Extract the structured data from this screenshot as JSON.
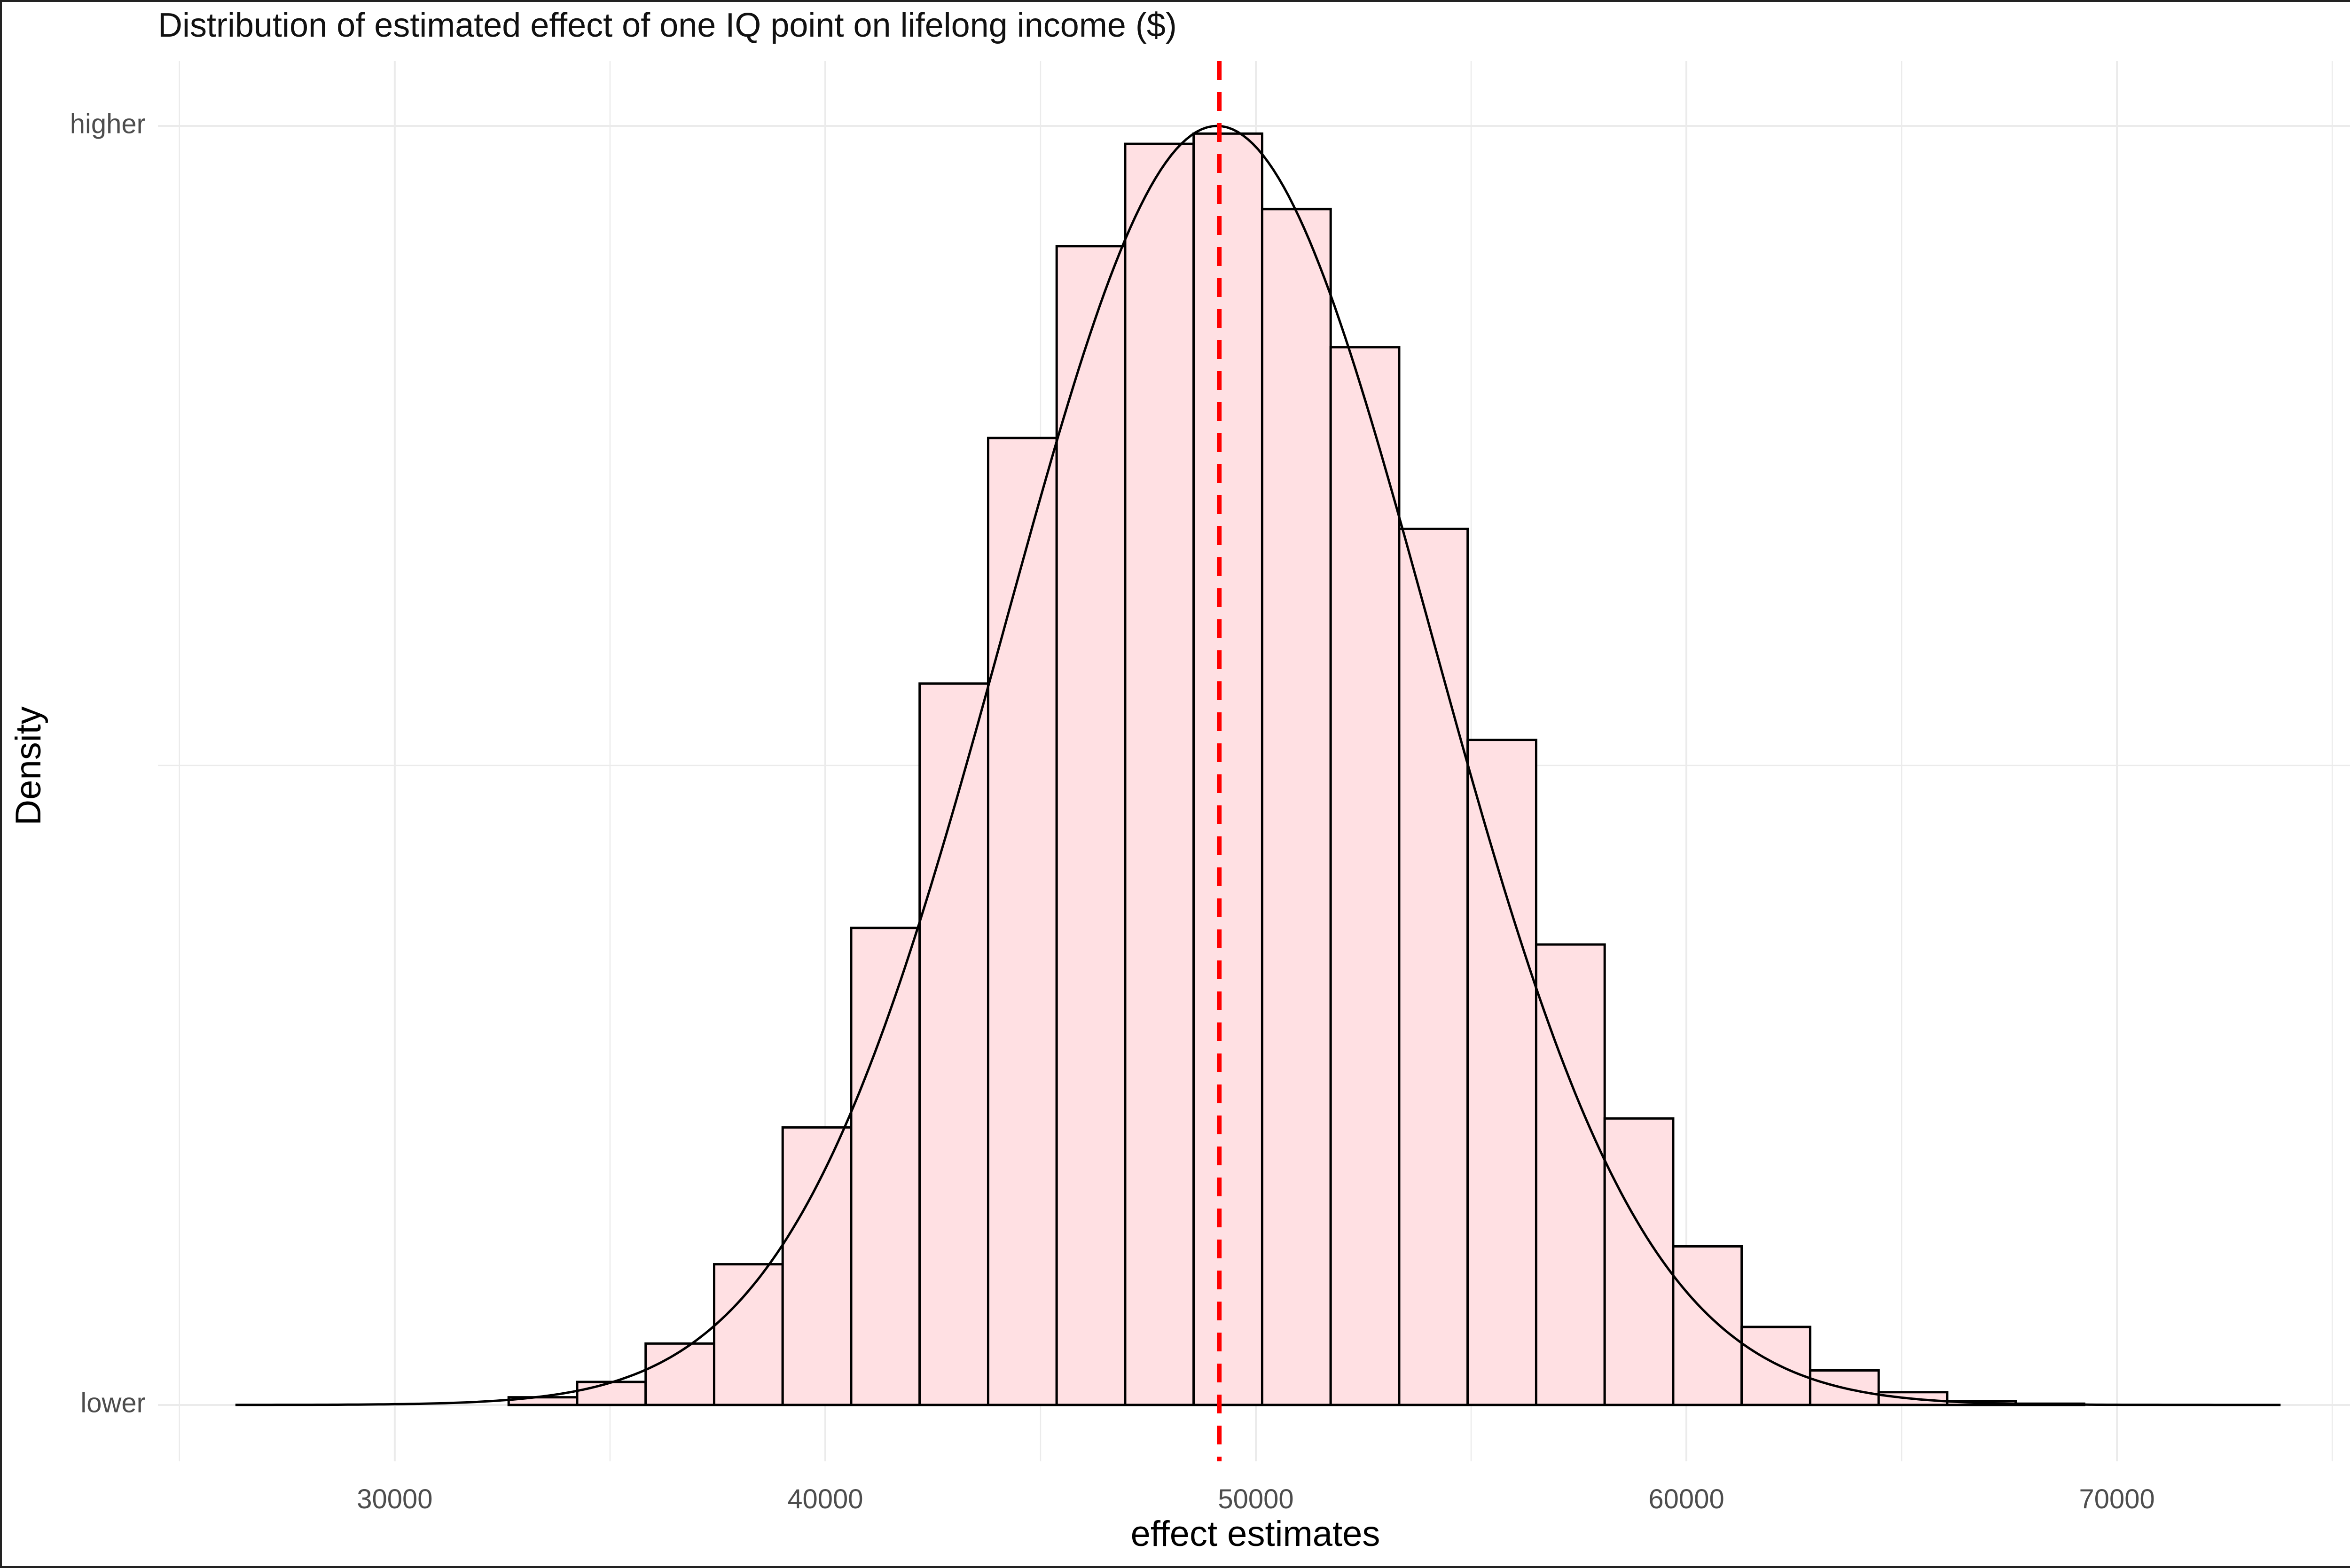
{
  "chart_data": {
    "type": "histogram",
    "title": "Distribution of estimated effect of one IQ point on lifelong income ($)",
    "xlabel": "effect estimates",
    "ylabel": "Density",
    "xlim": [
      24500,
      75500
    ],
    "x_ticks": [
      30000,
      40000,
      50000,
      60000,
      70000
    ],
    "x_minor_ticks": [
      25000,
      35000,
      45000,
      55000,
      65000,
      75000
    ],
    "y_tick_labels": {
      "bottom": "lower",
      "top": "higher"
    },
    "bin_width": 1591,
    "bins": [
      {
        "x0": 32646,
        "x1": 34237,
        "density": 0.006
      },
      {
        "x0": 34237,
        "x1": 35828,
        "density": 0.018
      },
      {
        "x0": 35828,
        "x1": 37419,
        "density": 0.048
      },
      {
        "x0": 37419,
        "x1": 39010,
        "density": 0.11
      },
      {
        "x0": 39010,
        "x1": 40601,
        "density": 0.217
      },
      {
        "x0": 40601,
        "x1": 42192,
        "density": 0.373
      },
      {
        "x0": 42192,
        "x1": 43783,
        "density": 0.564
      },
      {
        "x0": 43783,
        "x1": 45374,
        "density": 0.756
      },
      {
        "x0": 45374,
        "x1": 46965,
        "density": 0.906
      },
      {
        "x0": 46965,
        "x1": 48556,
        "density": 0.986
      },
      {
        "x0": 48556,
        "x1": 50147,
        "density": 0.994
      },
      {
        "x0": 50147,
        "x1": 51738,
        "density": 0.935
      },
      {
        "x0": 51738,
        "x1": 53329,
        "density": 0.827
      },
      {
        "x0": 53329,
        "x1": 54920,
        "density": 0.685
      },
      {
        "x0": 54920,
        "x1": 56511,
        "density": 0.52
      },
      {
        "x0": 56511,
        "x1": 58102,
        "density": 0.36
      },
      {
        "x0": 58102,
        "x1": 59693,
        "density": 0.224
      },
      {
        "x0": 59693,
        "x1": 61284,
        "density": 0.124
      },
      {
        "x0": 61284,
        "x1": 62875,
        "density": 0.061
      },
      {
        "x0": 62875,
        "x1": 64466,
        "density": 0.027
      },
      {
        "x0": 64466,
        "x1": 66057,
        "density": 0.01
      },
      {
        "x0": 66057,
        "x1": 67648,
        "density": 0.003
      },
      {
        "x0": 67648,
        "x1": 69239,
        "density": 0.001
      }
    ],
    "density_curve": {
      "x_range": [
        26300,
        73800
      ],
      "mean": 49100,
      "sd": 4950
    },
    "reference_line": {
      "x": 49150,
      "color": "#ff0000",
      "style": "dashed"
    },
    "colors": {
      "bar_fill": "#ffe0e3",
      "bar_stroke": "#000000",
      "grid": "#ebebeb",
      "curve": "#000000"
    },
    "grid": true,
    "legend": "none"
  }
}
